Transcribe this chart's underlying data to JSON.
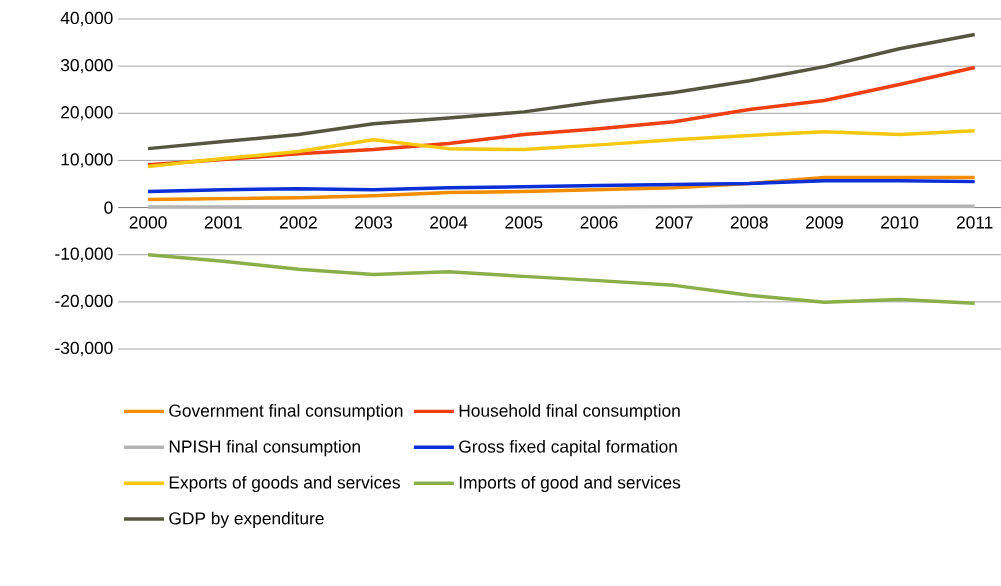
{
  "chart_data": {
    "type": "line",
    "categories": [
      "2000",
      "2001",
      "2002",
      "2003",
      "2004",
      "2005",
      "2006",
      "2007",
      "2008",
      "2009",
      "2010",
      "2011"
    ],
    "series": [
      {
        "name": "Government final consumption",
        "color": "#f28c00",
        "values": [
          1700,
          1900,
          2100,
          2500,
          3200,
          3400,
          3800,
          4200,
          5100,
          6400,
          6400,
          6400
        ]
      },
      {
        "name": "Household final consumption",
        "color": "#ef3f10",
        "values": [
          9100,
          10200,
          11400,
          12300,
          13600,
          15500,
          16700,
          18200,
          20800,
          22700,
          26100,
          29700
        ]
      },
      {
        "name": "NPISH final consumption",
        "color": "#b4b4b4",
        "values": [
          100,
          100,
          100,
          100,
          100,
          100,
          100,
          200,
          300,
          300,
          300,
          300
        ]
      },
      {
        "name": "Gross fixed capital formation",
        "color": "#0a2fd6",
        "values": [
          3400,
          3800,
          4000,
          3800,
          4200,
          4400,
          4700,
          4900,
          5100,
          5700,
          5700,
          5500
        ]
      },
      {
        "name": "Exports of goods and services",
        "color": "#f6c70f",
        "values": [
          8700,
          10400,
          11900,
          14400,
          12500,
          12300,
          13300,
          14400,
          15300,
          16100,
          15500,
          16300
        ]
      },
      {
        "name": "Imports of good and services",
        "color": "#8aaf4a",
        "values": [
          -10000,
          -11400,
          -13100,
          -14200,
          -13600,
          -14600,
          -15500,
          -16500,
          -18600,
          -20100,
          -19500,
          -20300
        ]
      },
      {
        "name": "GDP by expenditure",
        "color": "#55563f",
        "values": [
          12500,
          14000,
          15500,
          17800,
          19000,
          20300,
          22500,
          24400,
          26900,
          29900,
          33700,
          36700
        ]
      }
    ],
    "ylim": [
      -30000,
      40000
    ],
    "yticks": [
      {
        "value": -30000,
        "label": "-30,000"
      },
      {
        "value": -20000,
        "label": "-20,000"
      },
      {
        "value": -10000,
        "label": "-10,000"
      },
      {
        "value": 0,
        "label": "0"
      },
      {
        "value": 10000,
        "label": "10,000"
      },
      {
        "value": 20000,
        "label": "20,000"
      },
      {
        "value": 30000,
        "label": "30,000"
      },
      {
        "value": 40000,
        "label": "40,000"
      }
    ],
    "grid": "y",
    "legend": "bottom",
    "marker": "none",
    "line_style": "solid"
  }
}
